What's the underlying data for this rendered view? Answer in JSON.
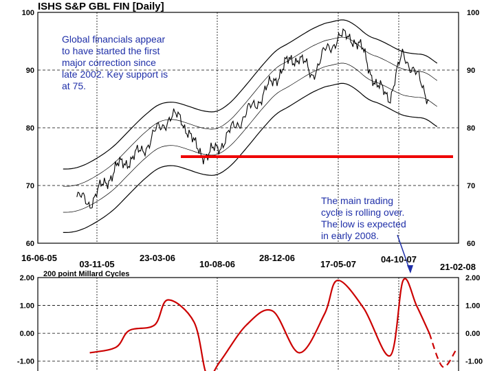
{
  "chart_data": [
    {
      "type": "line",
      "title": "ISHS S&P GBL FIN  [Daily]",
      "ylim": [
        60,
        100
      ],
      "yticks": [
        60,
        70,
        80,
        90,
        100
      ],
      "date_labels_top": [
        "16-06-05",
        "23-03-06",
        "28-12-06",
        "17-05-07",
        "21-02-08"
      ],
      "date_labels_bottom": [
        "03-11-05",
        "10-08-06",
        "04-10-07"
      ],
      "support_level": 75,
      "support_color": "#ee0000",
      "series": [
        {
          "x": [
            "2005-09",
            "2005-10",
            "2005-11",
            "2005-12",
            "2006-01",
            "2006-02",
            "2006-03",
            "2006-04",
            "2006-05",
            "2006-06",
            "2006-07",
            "2006-08",
            "2006-09",
            "2006-10",
            "2006-11",
            "2006-12",
            "2007-01",
            "2007-02",
            "2007-03",
            "2007-04",
            "2007-05",
            "2007-06",
            "2007-07",
            "2007-08",
            "2007-09",
            "2007-10",
            "2007-11",
            "2007-12"
          ],
          "values": [
            68,
            67,
            70,
            73,
            74.5,
            76,
            79,
            81.5,
            82,
            77,
            75,
            77,
            80,
            82.5,
            85,
            88,
            91,
            92.5,
            89,
            93,
            95.5,
            96,
            93,
            87,
            85.5,
            93,
            89,
            85
          ]
        }
      ],
      "annotations": [
        {
          "lines": [
            "Global financials appear",
            "to have started the first",
            "major correction since",
            "late 2002.  Key support is",
            "at 75."
          ],
          "color": "#1f2fa8"
        },
        {
          "lines": [
            "The main trading",
            "cycle is rolling over.",
            "The low is expected",
            "in early 2008."
          ],
          "color": "#1f2fa8"
        }
      ]
    },
    {
      "type": "line",
      "title": "200 point Millard Cycles",
      "ylim": [
        -1.5,
        2.0
      ],
      "yticks": [
        2.0,
        1.0,
        0.0,
        -1.0
      ],
      "ytick_labels": [
        "2.00",
        "1.00",
        "0.00",
        "-1.00"
      ],
      "series": [
        {
          "x": [
            "2005-10",
            "2005-12",
            "2006-01",
            "2006-03",
            "2006-04",
            "2006-06",
            "2006-07",
            "2006-08",
            "2006-10",
            "2006-12",
            "2007-02",
            "2007-04",
            "2007-05",
            "2007-07",
            "2007-09",
            "2007-10",
            "2007-11",
            "2007-12"
          ],
          "values": [
            -0.7,
            -0.5,
            0.1,
            0.3,
            1.2,
            0.4,
            -1.5,
            -1.0,
            0.3,
            0.8,
            -0.7,
            0.7,
            1.9,
            0.9,
            -0.8,
            1.9,
            1.0,
            0.0
          ],
          "color": "#cc0000"
        },
        {
          "x": [
            "2007-12",
            "2008-01",
            "2008-02"
          ],
          "values": [
            0.0,
            -1.2,
            -0.6
          ],
          "color": "#cc0000",
          "style": "dashed"
        }
      ]
    }
  ]
}
